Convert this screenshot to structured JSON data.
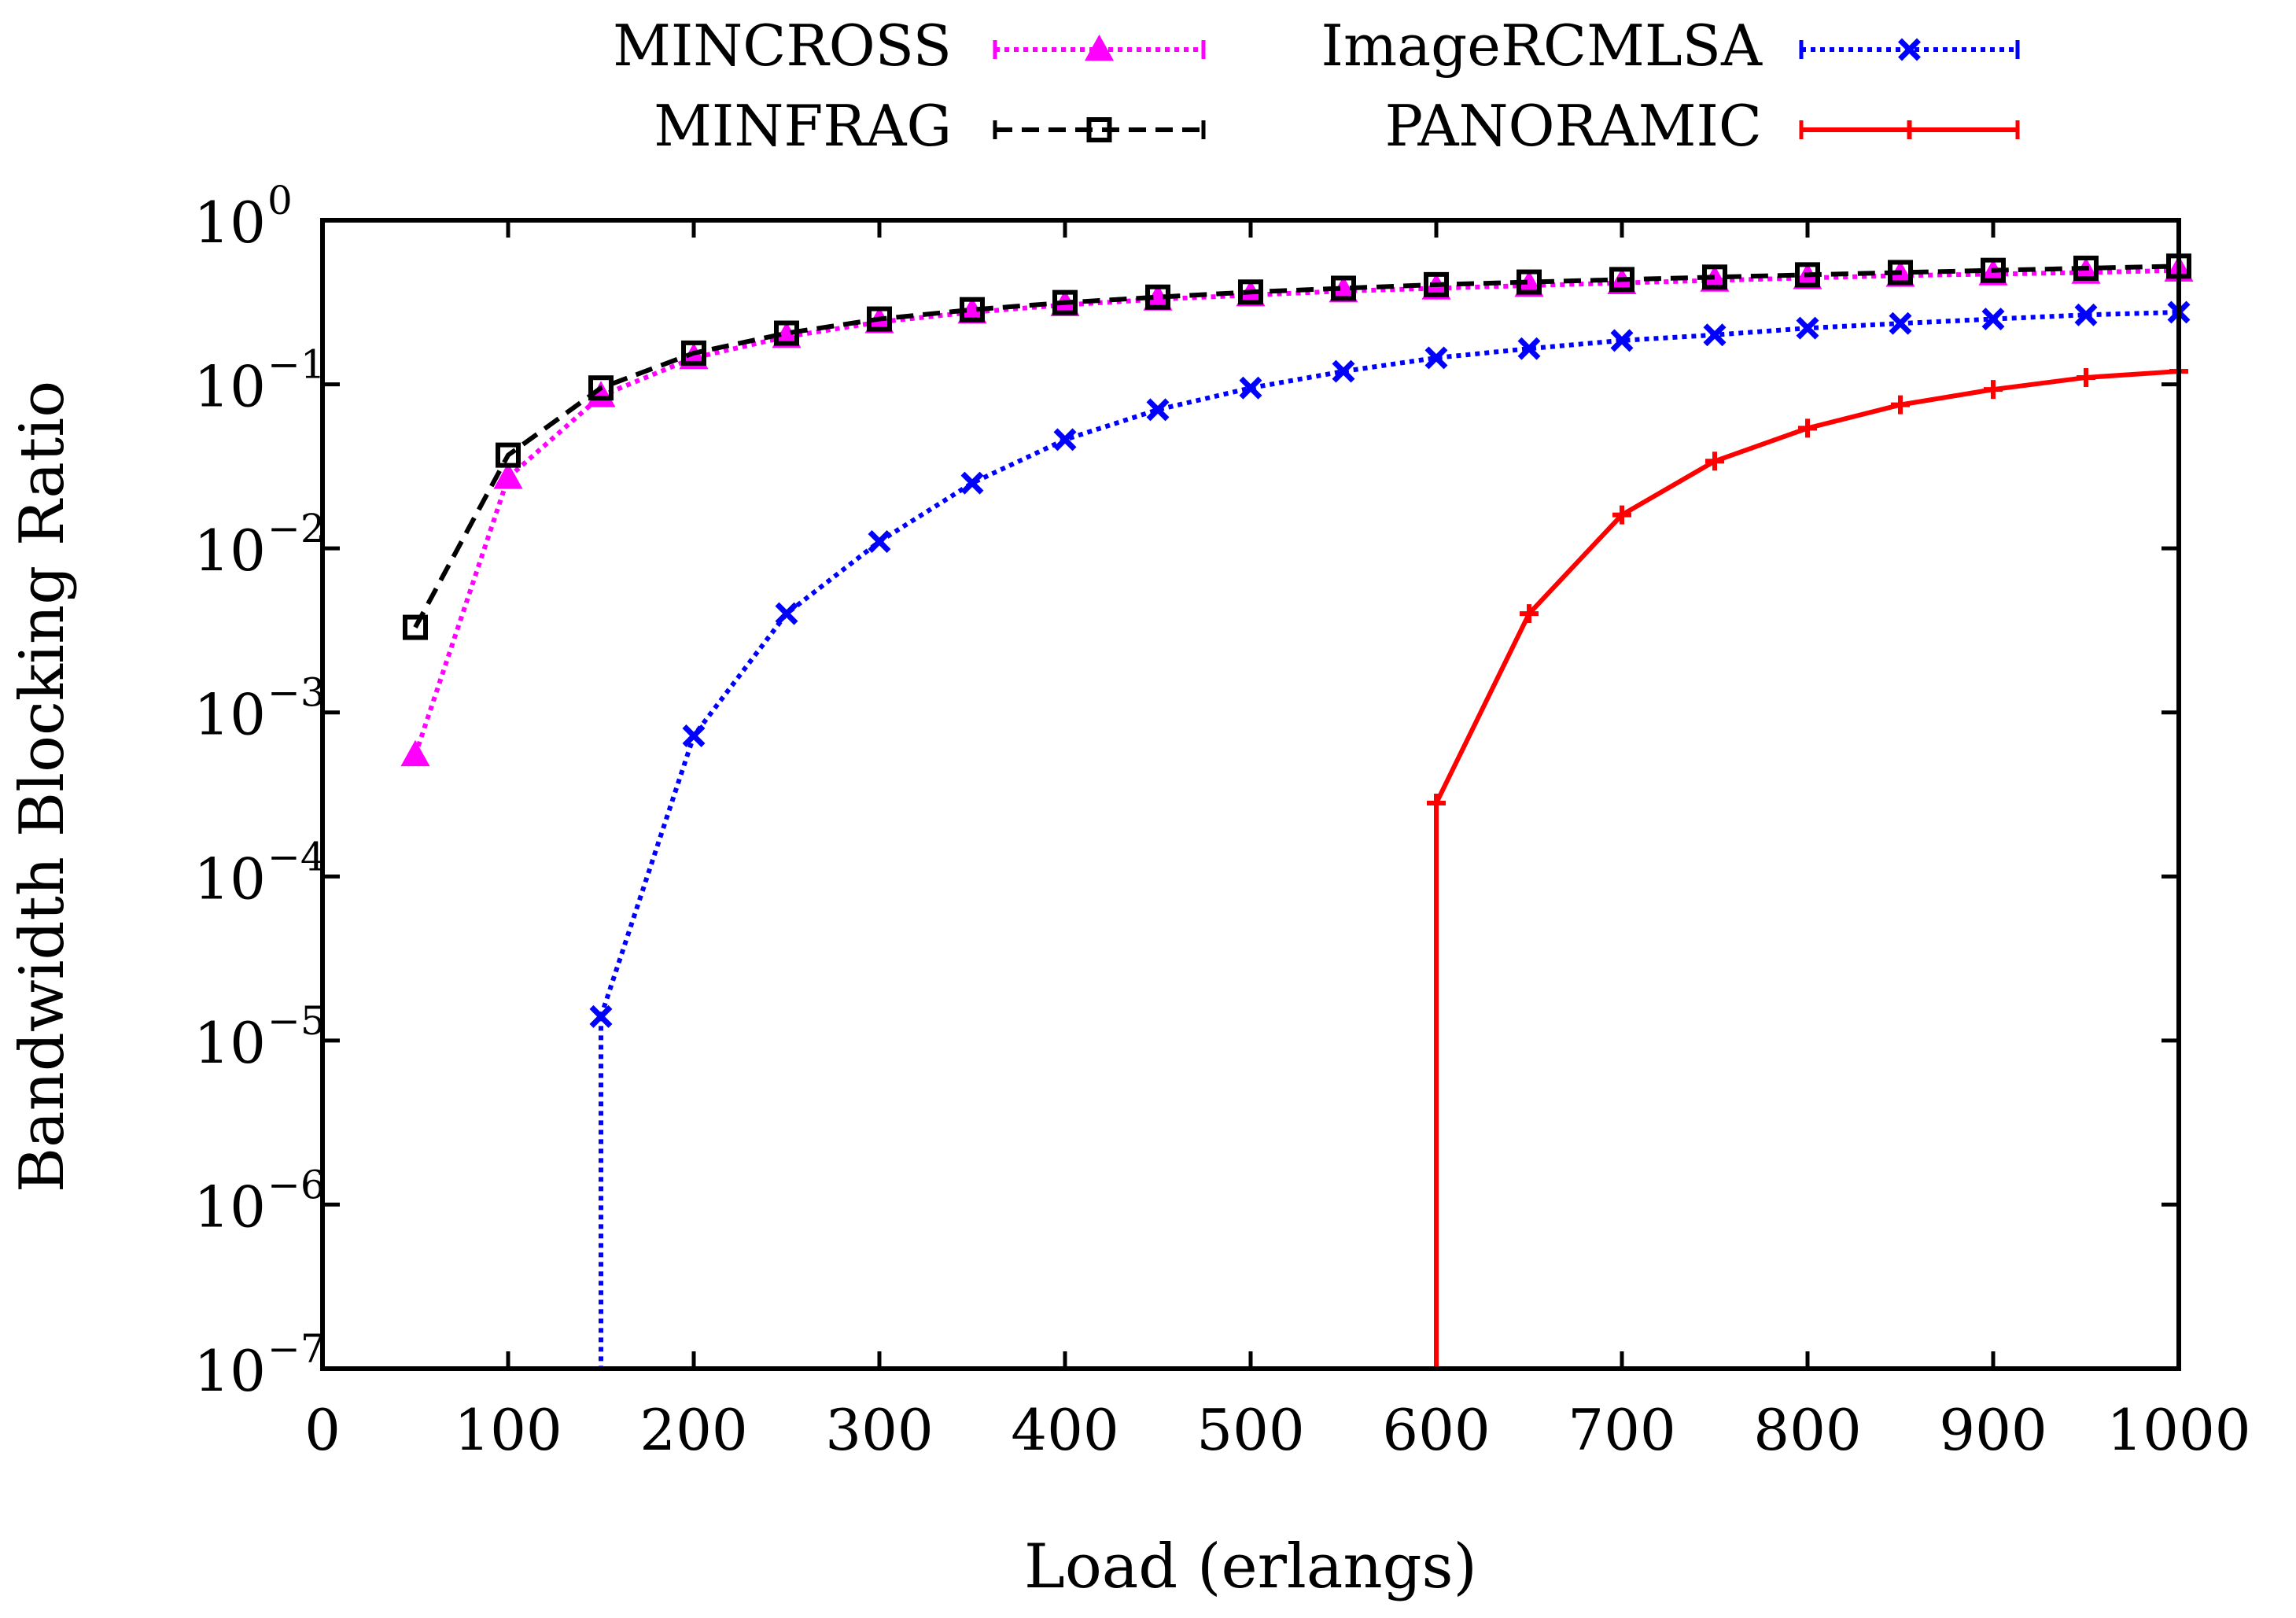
{
  "chart_data": {
    "type": "line",
    "title": "",
    "xlabel": "Load (erlangs)",
    "ylabel": "Bandwidth Blocking Ratio",
    "xlim": [
      0,
      1000
    ],
    "ylim": [
      1e-07,
      1
    ],
    "yscale": "log",
    "x_ticks": [
      "0",
      "100",
      "200",
      "300",
      "400",
      "500",
      "600",
      "700",
      "800",
      "900",
      "1000"
    ],
    "y_tick_base": "10",
    "y_tick_exponents": [
      "−7",
      "−6",
      "−5",
      "−4",
      "−3",
      "−2",
      "−1",
      "0"
    ],
    "legend": [
      "MINCROSS",
      "MINFRAG",
      "ImageRCMLSA",
      "PANORAMIC"
    ],
    "series": [
      {
        "name": "MINCROSS",
        "color": "#ff00ff",
        "marker": "triangle",
        "dash": "dotted",
        "x": [
          50,
          100,
          150,
          200,
          250,
          300,
          350,
          400,
          450,
          500,
          550,
          600,
          650,
          700,
          750,
          800,
          850,
          900,
          950,
          1000
        ],
        "values": [
          0.00055,
          0.027,
          0.085,
          0.145,
          0.195,
          0.24,
          0.275,
          0.305,
          0.33,
          0.35,
          0.37,
          0.385,
          0.4,
          0.415,
          0.43,
          0.445,
          0.46,
          0.47,
          0.48,
          0.495
        ]
      },
      {
        "name": "MINFRAG",
        "color": "#000000",
        "marker": "square",
        "dash": "dashed",
        "x": [
          50,
          100,
          150,
          200,
          250,
          300,
          350,
          400,
          450,
          500,
          550,
          600,
          650,
          700,
          750,
          800,
          850,
          900,
          950,
          1000
        ],
        "values": [
          0.0033,
          0.037,
          0.095,
          0.155,
          0.205,
          0.25,
          0.285,
          0.315,
          0.34,
          0.365,
          0.385,
          0.405,
          0.42,
          0.435,
          0.45,
          0.465,
          0.48,
          0.495,
          0.51,
          0.525
        ]
      },
      {
        "name": "ImageRCMLSA",
        "color": "#0000ff",
        "marker": "x",
        "dash": "dotted",
        "x": [
          150,
          200,
          250,
          300,
          350,
          400,
          450,
          500,
          550,
          600,
          650,
          700,
          750,
          800,
          850,
          900,
          950,
          1000
        ],
        "values": [
          1.4e-05,
          0.00072,
          0.004,
          0.011,
          0.025,
          0.046,
          0.07,
          0.095,
          0.12,
          0.145,
          0.165,
          0.185,
          0.2,
          0.22,
          0.235,
          0.25,
          0.265,
          0.275
        ]
      },
      {
        "name": "PANORAMIC",
        "color": "#ff0000",
        "marker": "plus",
        "dash": "solid",
        "x": [
          600,
          650,
          700,
          750,
          800,
          850,
          900,
          950,
          1000
        ],
        "values": [
          0.00028,
          0.004,
          0.016,
          0.034,
          0.054,
          0.075,
          0.093,
          0.11,
          0.12
        ]
      }
    ]
  }
}
